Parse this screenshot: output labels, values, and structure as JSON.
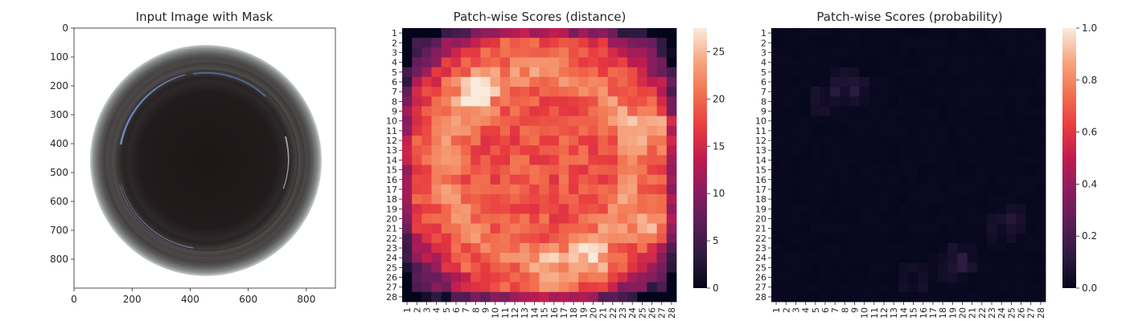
{
  "chart_data": [
    {
      "type": "image",
      "title": "Input Image with Mask",
      "xticks": [
        "0",
        "200",
        "400",
        "600",
        "800"
      ],
      "yticks": [
        "0",
        "100",
        "200",
        "300",
        "400",
        "500",
        "600",
        "700",
        "800"
      ],
      "xlim": [
        0,
        900
      ],
      "ylim": [
        900,
        0
      ],
      "image_content": "top view of a glass bottle bottom with dark center and blue highlights"
    },
    {
      "type": "heatmap",
      "title": "Patch-wise Scores (distance)",
      "rows": 28,
      "cols": 28,
      "colormap": "rocket",
      "colorbar_range": [
        0,
        27.5
      ],
      "colorbar_ticks": [
        "0",
        "5",
        "10",
        "15",
        "20",
        "25"
      ],
      "xticks": [
        "1",
        "2",
        "3",
        "4",
        "5",
        "6",
        "7",
        "8",
        "9",
        "10",
        "11",
        "12",
        "13",
        "14",
        "15",
        "16",
        "17",
        "18",
        "19",
        "20",
        "21",
        "22",
        "23",
        "24",
        "25",
        "26",
        "27",
        "28"
      ],
      "yticks": [
        "1",
        "2",
        "3",
        "4",
        "5",
        "6",
        "7",
        "8",
        "9",
        "10",
        "11",
        "12",
        "13",
        "14",
        "15",
        "16",
        "17",
        "18",
        "19",
        "20",
        "21",
        "22",
        "23",
        "24",
        "25",
        "26",
        "27",
        "28"
      ]
    },
    {
      "type": "heatmap",
      "title": "Patch-wise Scores (probability)",
      "rows": 28,
      "cols": 28,
      "colormap": "rocket",
      "colorbar_range": [
        0,
        1
      ],
      "colorbar_ticks": [
        "0.0",
        "0.2",
        "0.4",
        "0.6",
        "0.8",
        "1.0"
      ],
      "xticks": [
        "1",
        "2",
        "3",
        "4",
        "5",
        "6",
        "7",
        "8",
        "9",
        "10",
        "11",
        "12",
        "13",
        "14",
        "15",
        "16",
        "17",
        "18",
        "19",
        "20",
        "21",
        "22",
        "23",
        "24",
        "25",
        "26",
        "27",
        "28"
      ],
      "yticks": [
        "1",
        "2",
        "3",
        "4",
        "5",
        "6",
        "7",
        "8",
        "9",
        "10",
        "11",
        "12",
        "13",
        "14",
        "15",
        "16",
        "17",
        "18",
        "19",
        "20",
        "21",
        "22",
        "23",
        "24",
        "25",
        "26",
        "27",
        "28"
      ]
    }
  ]
}
